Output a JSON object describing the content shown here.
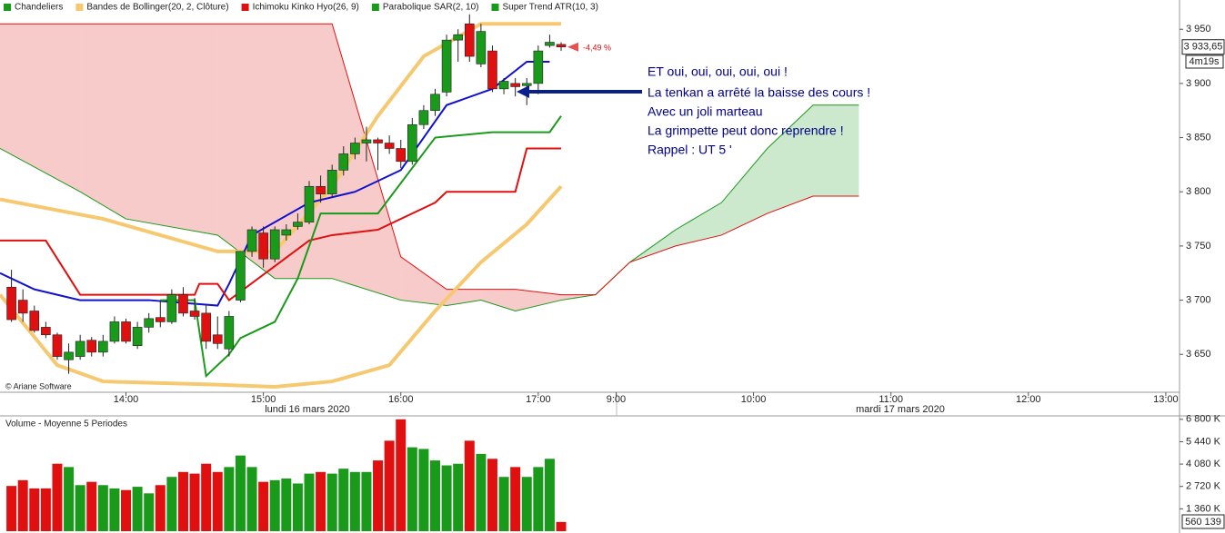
{
  "chart_data": {
    "type": "candlestick",
    "legend": [
      {
        "name": "Chandeliers",
        "color": "#1a9a1a"
      },
      {
        "name": "Bandes de Bollinger(20, 2, Clôture)",
        "color": "#f6c870"
      },
      {
        "name": "Ichimoku Kinko Hyo(26, 9)",
        "color": "#e01010"
      },
      {
        "name": "Parabolique SAR(2, 10)",
        "color": "#1a9a1a"
      },
      {
        "name": "Super Trend ATR(10, 3)",
        "color": "#1a9a1a"
      }
    ],
    "up_color": "#1a9a1a",
    "down_color": "#e01010",
    "x": [
      10,
      15,
      20,
      25,
      30,
      35,
      40,
      45,
      50,
      55,
      60,
      65,
      70,
      75,
      80,
      85,
      90,
      95,
      100,
      105,
      110,
      115,
      120,
      125,
      130,
      135,
      140,
      145,
      150,
      155,
      160,
      165,
      170,
      175,
      180,
      185,
      190,
      195,
      200,
      205,
      210,
      215,
      220,
      225,
      230,
      235,
      240,
      245,
      250
    ],
    "open": [
      3712,
      3700,
      3690,
      3675,
      3668,
      3645,
      3648,
      3663,
      3652,
      3662,
      3680,
      3658,
      3675,
      3684,
      3680,
      3705,
      3690,
      3688,
      3668,
      3655,
      3700,
      3745,
      3762,
      3738,
      3760,
      3768,
      3772,
      3805,
      3798,
      3820,
      3835,
      3845,
      3848,
      3845,
      3840,
      3828,
      3862,
      3875,
      3892,
      3940,
      3955,
      3918,
      3930,
      3895,
      3900,
      3898,
      3900,
      3935,
      3936
    ],
    "high": [
      3728,
      3710,
      3695,
      3680,
      3670,
      3660,
      3668,
      3666,
      3668,
      3685,
      3683,
      3680,
      3688,
      3700,
      3710,
      3712,
      3702,
      3695,
      3685,
      3690,
      3745,
      3768,
      3768,
      3768,
      3770,
      3780,
      3810,
      3815,
      3825,
      3842,
      3850,
      3860,
      3850,
      3852,
      3848,
      3868,
      3880,
      3895,
      3945,
      3950,
      3965,
      3955,
      3935,
      3905,
      3905,
      3905,
      3935,
      3945,
      3938
    ],
    "low": [
      3680,
      3680,
      3670,
      3665,
      3645,
      3632,
      3645,
      3648,
      3648,
      3660,
      3660,
      3655,
      3670,
      3675,
      3678,
      3685,
      3682,
      3655,
      3655,
      3648,
      3698,
      3740,
      3730,
      3735,
      3755,
      3765,
      3770,
      3790,
      3795,
      3815,
      3830,
      3828,
      3820,
      3835,
      3822,
      3825,
      3858,
      3870,
      3888,
      3920,
      3920,
      3915,
      3892,
      3890,
      3888,
      3880,
      3890,
      3933,
      3930
    ],
    "close": [
      3682,
      3688,
      3672,
      3668,
      3648,
      3652,
      3662,
      3652,
      3662,
      3680,
      3662,
      3675,
      3683,
      3680,
      3705,
      3688,
      3685,
      3662,
      3660,
      3685,
      3745,
      3765,
      3738,
      3765,
      3765,
      3772,
      3805,
      3798,
      3820,
      3835,
      3845,
      3848,
      3845,
      3840,
      3828,
      3862,
      3875,
      3890,
      3940,
      3945,
      3925,
      3948,
      3895,
      3902,
      3897,
      3900,
      3930,
      3938,
      3933.65
    ],
    "overlays": [
      {
        "color": "#f6c870",
        "x": [
          5,
          50,
          100,
          125,
          150,
          170,
          190,
          215,
          250
        ],
        "values": [
          3793,
          3775,
          3745,
          3745,
          3805,
          3870,
          3925,
          3955,
          3955
        ]
      },
      {
        "color": "#f6c870",
        "x": [
          5,
          30,
          50,
          100,
          125,
          150,
          175,
          195,
          215,
          235,
          250
        ],
        "values": [
          3705,
          3640,
          3625,
          3622,
          3620,
          3625,
          3640,
          3690,
          3735,
          3770,
          3805
        ]
      },
      {
        "color": "#1010d0",
        "x": [
          5,
          20,
          40,
          70,
          100,
          105,
          115,
          140,
          160,
          180,
          200,
          220,
          235,
          245
        ],
        "values": [
          3725,
          3710,
          3700,
          3700,
          3695,
          3715,
          3760,
          3790,
          3800,
          3820,
          3880,
          3895,
          3920,
          3920
        ]
      },
      {
        "color": "#e01010",
        "x": [
          5,
          25,
          40,
          90,
          92,
          100,
          105,
          140,
          150,
          170,
          195,
          200,
          215,
          230,
          235,
          250
        ],
        "values": [
          3755,
          3755,
          3705,
          3705,
          3715,
          3715,
          3700,
          3755,
          3760,
          3765,
          3790,
          3800,
          3800,
          3800,
          3840,
          3840
        ]
      },
      {
        "color": "#1a9a1a",
        "x": [
          75,
          90,
          95,
          105,
          110,
          125,
          135,
          145,
          170,
          195,
          220,
          245,
          250
        ],
        "values": [
          3700,
          3700,
          3630,
          3650,
          3665,
          3680,
          3720,
          3780,
          3780,
          3850,
          3855,
          3855,
          3870
        ]
      }
    ],
    "cloud": {
      "up_color": "#1a9a1a",
      "down_color": "#e01010",
      "x": [
        5,
        40,
        60,
        100,
        125,
        150,
        180,
        200,
        215,
        230,
        250,
        265,
        280,
        300,
        320,
        340,
        360,
        380
      ],
      "span_a": [
        3840,
        3800,
        3775,
        3760,
        3720,
        3720,
        3700,
        3695,
        3700,
        3690,
        3700,
        3705,
        3735,
        3765,
        3790,
        3840,
        3880,
        3880
      ],
      "span_b": [
        3955,
        3955,
        3955,
        3955,
        3955,
        3955,
        3740,
        3710,
        3710,
        3710,
        3705,
        3705,
        3735,
        3750,
        3760,
        3780,
        3796,
        3796
      ]
    },
    "xlim": [
      5,
      520
    ],
    "ylim": [
      3615,
      3977
    ],
    "xticks": [
      {
        "value": 60,
        "label": "14:00"
      },
      {
        "value": 120,
        "label": "15:00"
      },
      {
        "value": 180,
        "label": "16:00"
      },
      {
        "value": 240,
        "label": "17:00"
      },
      {
        "value": 274,
        "label": "9:00"
      },
      {
        "value": 334,
        "label": "10:00"
      },
      {
        "value": 394,
        "label": "11:00"
      },
      {
        "value": 454,
        "label": "12:00"
      },
      {
        "value": 514,
        "label": "13:00"
      }
    ],
    "yticks": [
      {
        "value": 3950,
        "label": "3 950"
      },
      {
        "value": 3900,
        "label": "3 900"
      },
      {
        "value": 3850,
        "label": "3 850"
      },
      {
        "value": 3800,
        "label": "3 800"
      },
      {
        "value": 3750,
        "label": "3 750"
      },
      {
        "value": 3700,
        "label": "3 700"
      },
      {
        "value": 3650,
        "label": "3 650"
      }
    ],
    "last_price": {
      "value": 3933.65,
      "label": "3 933,65"
    },
    "change_label": "-4,49 %",
    "timer_label": "4m19s",
    "dates": [
      "lundi 16 mars 2020",
      "mardi 17 mars 2020"
    ],
    "copyright": "© Ariane Software",
    "annotation": [
      "ET oui, oui, oui, oui, oui  !",
      "La tenkan a arrêté la baisse des cours !",
      "Avec un joli marteau",
      "La grimpette peut donc reprendre !",
      "Rappel : UT 5 '"
    ],
    "volume": {
      "title": "Volume  - Moyenne 5 Periodes",
      "values": [
        2750000,
        3100000,
        2600000,
        2600000,
        4100000,
        3900000,
        2800000,
        3000000,
        2800000,
        2600000,
        2500000,
        2700000,
        2300000,
        2800000,
        3300000,
        3600000,
        3500000,
        4100000,
        3600000,
        3900000,
        4600000,
        3900000,
        3000000,
        3100000,
        3200000,
        2900000,
        3500000,
        3600000,
        3500000,
        3800000,
        3600000,
        3600000,
        4300000,
        5500000,
        6800000,
        5100000,
        5000000,
        4300000,
        4000000,
        4100000,
        5500000,
        4700000,
        4400000,
        3300000,
        3900000,
        3300000,
        3900000,
        4400000,
        560139
      ],
      "last_label": "560 139",
      "ylim": [
        0,
        6900000
      ],
      "yticks": [
        {
          "value": 6800000,
          "label": "6 800 K"
        },
        {
          "value": 5440000,
          "label": "5 440 K"
        },
        {
          "value": 4080000,
          "label": "4 080 K"
        },
        {
          "value": 2720000,
          "label": "2 720 K"
        },
        {
          "value": 1360000,
          "label": "1 360 K"
        }
      ]
    }
  }
}
